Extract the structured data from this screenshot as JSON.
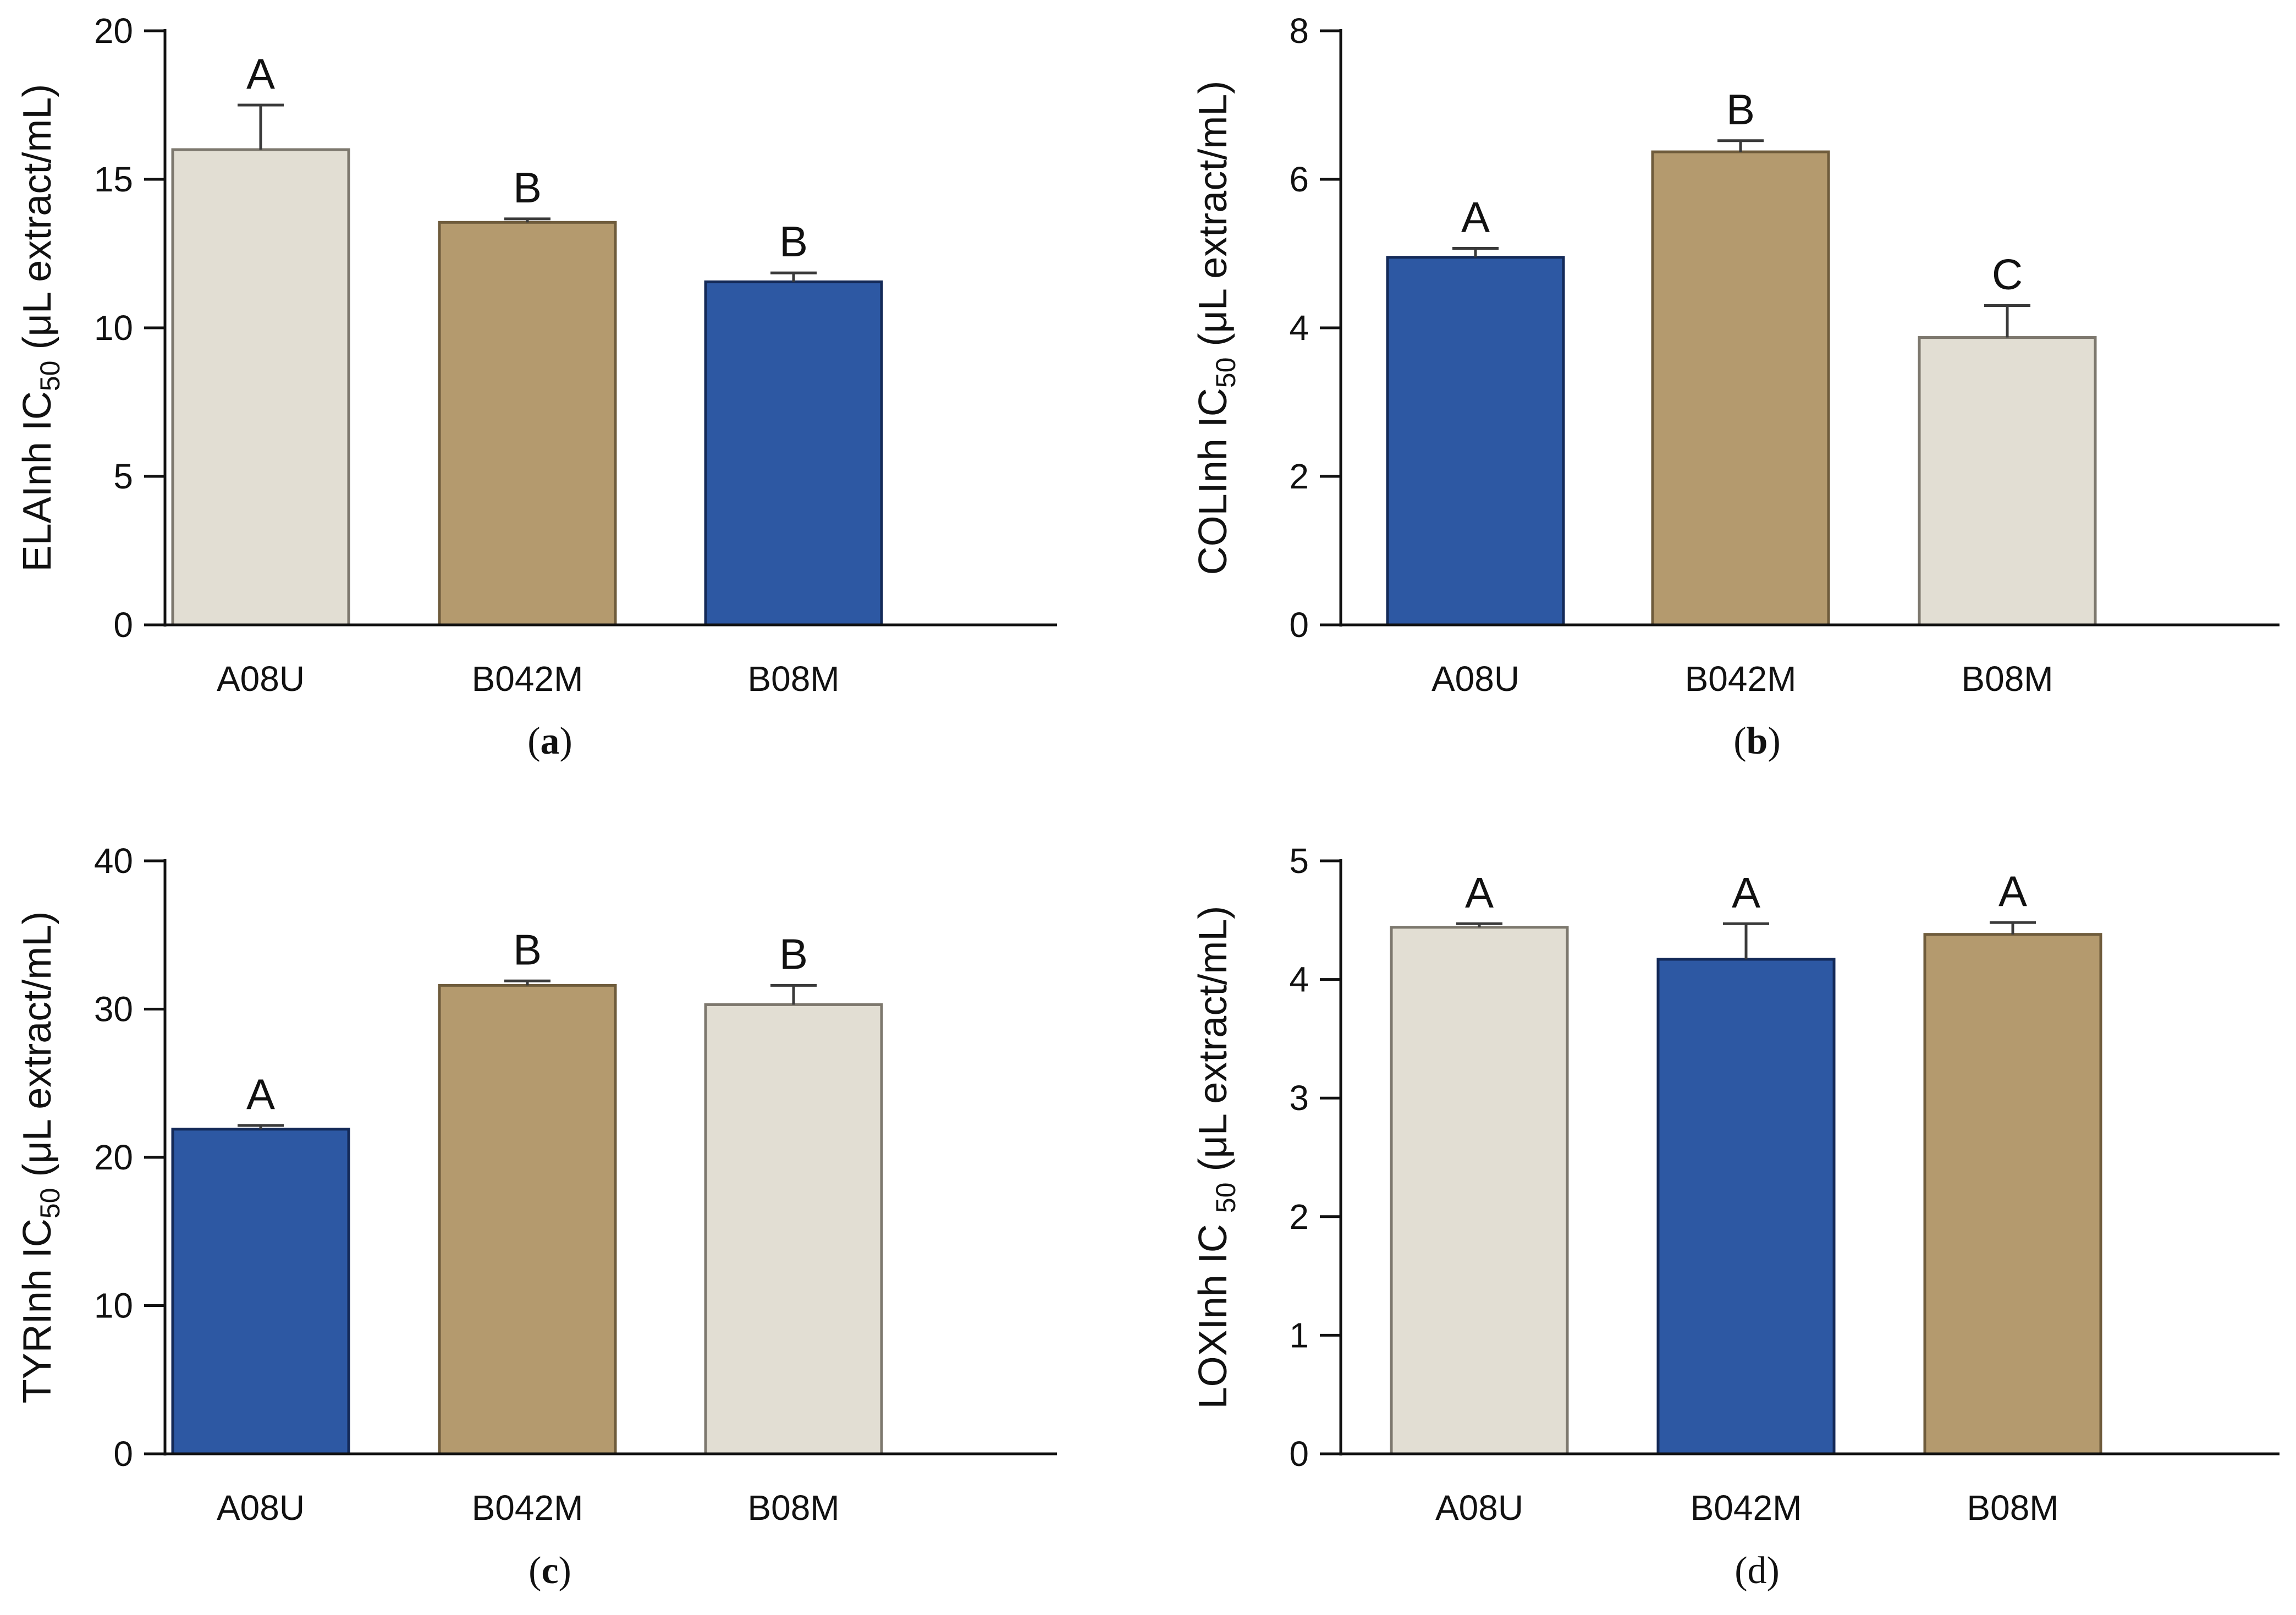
{
  "colors": {
    "light": "#e2ded3",
    "tan": "#b49a6e",
    "blue": "#2d58a3",
    "light_edge": "#7d786e",
    "tan_edge": "#6f5c3c",
    "blue_edge": "#142a58",
    "axis": "#111111"
  },
  "chart_data": [
    {
      "type": "bar",
      "id": "a",
      "caption": {
        "open": "(",
        "letter": "a",
        "close": ")"
      },
      "ylabel": {
        "main": "ELAInh IC",
        "sub": "50",
        "tail": " (μL extract/mL)"
      },
      "xlabel": "",
      "categories": [
        "A08U",
        "B042M",
        "B08M"
      ],
      "values": [
        16.0,
        13.55,
        11.55
      ],
      "errors": [
        1.5,
        0.12,
        0.3
      ],
      "letters": [
        "A",
        "B",
        "B"
      ],
      "colors": [
        "light",
        "tan",
        "blue"
      ],
      "ylim": [
        0,
        20
      ],
      "yticks": [
        0,
        5,
        10,
        15,
        20
      ],
      "grid": false
    },
    {
      "type": "bar",
      "id": "b",
      "caption": {
        "open": "(",
        "letter": "b",
        "close": ")"
      },
      "ylabel": {
        "main": "COLInh IC",
        "sub": "50",
        "tail": " (μL extract/mL)"
      },
      "xlabel": "",
      "categories": [
        "A08U",
        "B042M",
        "B08M"
      ],
      "values": [
        4.95,
        6.37,
        3.87
      ],
      "errors": [
        0.12,
        0.15,
        0.43
      ],
      "letters": [
        "A",
        "B",
        "C"
      ],
      "colors": [
        "blue",
        "tan",
        "light"
      ],
      "ylim": [
        0,
        8
      ],
      "yticks": [
        0,
        2,
        4,
        6,
        8
      ],
      "grid": false
    },
    {
      "type": "bar",
      "id": "c",
      "caption": {
        "open": "(",
        "letter": "c",
        "close": ")"
      },
      "ylabel": {
        "main": "TYRInh IC",
        "sub": "50",
        "tail": " (μL extract/mL)"
      },
      "xlabel": "",
      "categories": [
        "A08U",
        "B042M",
        "B08M"
      ],
      "values": [
        21.9,
        31.6,
        30.3
      ],
      "errors": [
        0.25,
        0.3,
        1.3
      ],
      "letters": [
        "A",
        "B",
        "B"
      ],
      "colors": [
        "blue",
        "tan",
        "light"
      ],
      "ylim": [
        0,
        40
      ],
      "yticks": [
        0,
        10,
        20,
        30,
        40
      ],
      "grid": false
    },
    {
      "type": "bar",
      "id": "d",
      "caption": {
        "open": "(",
        "letter": "d",
        "close": ")"
      },
      "ylabel": {
        "main": "LOXInh IC ",
        "sub": "50",
        "tail": " (μL extract/mL)"
      },
      "xlabel": "",
      "categories": [
        "A08U",
        "B042M",
        "B08M"
      ],
      "values": [
        4.44,
        4.17,
        4.38
      ],
      "errors": [
        0.03,
        0.3,
        0.1
      ],
      "letters": [
        "A",
        "A",
        "A"
      ],
      "colors": [
        "light",
        "blue",
        "tan"
      ],
      "ylim": [
        0,
        5
      ],
      "yticks": [
        0,
        1,
        2,
        3,
        4,
        5
      ],
      "grid": false
    }
  ]
}
